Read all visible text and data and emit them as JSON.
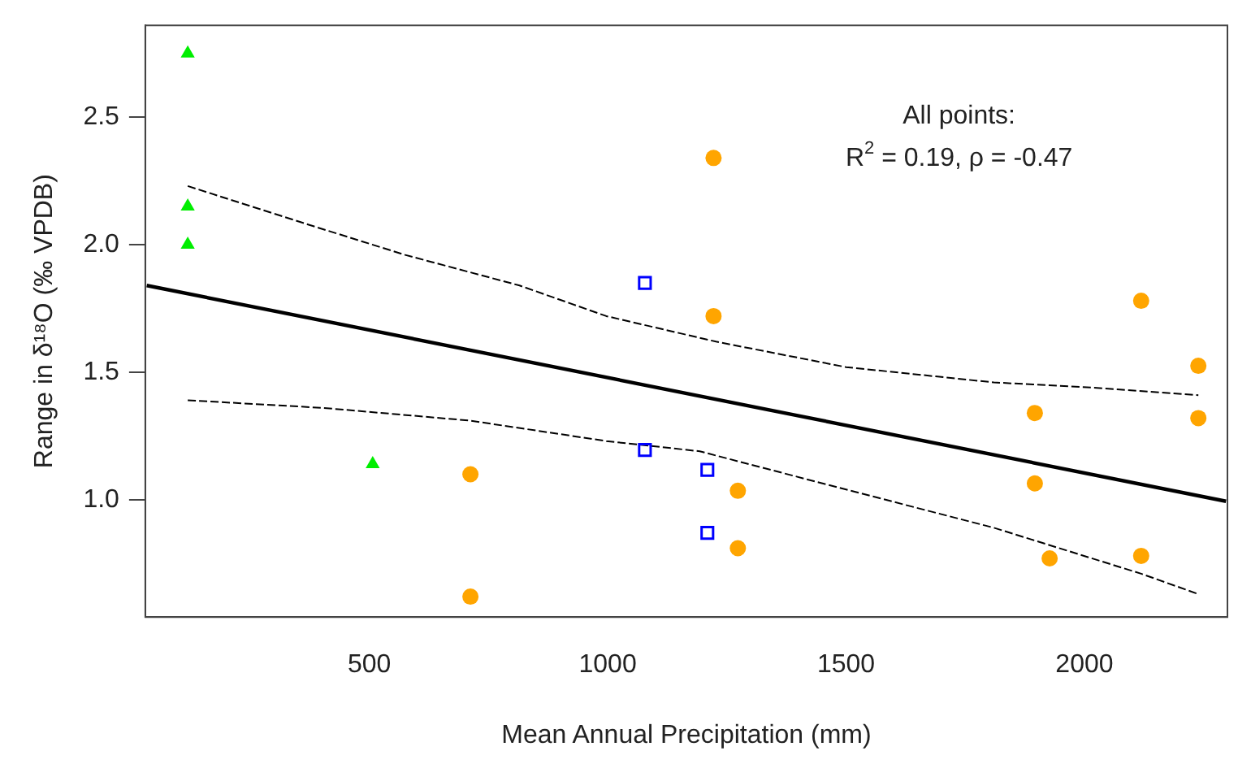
{
  "chart_data": {
    "type": "scatter",
    "xlabel": "Mean Annual Precipitation (mm)",
    "ylabel": "Range in δ¹⁸O (‰ VPDB)",
    "annotations": [
      "All points:",
      "R$^{2}$ = 0.19, ρ = -0.47"
    ],
    "xlim": [
      30,
      2300
    ],
    "xticks": [
      500,
      1000,
      1500,
      2000
    ],
    "ylim": [
      0.54,
      2.86
    ],
    "yticks": [
      {
        "value": 1,
        "label": "1.0"
      },
      {
        "value": 1.5,
        "label": "1.5"
      },
      {
        "value": 2,
        "label": "2.0"
      },
      {
        "value": 2.5,
        "label": "2.5"
      }
    ],
    "grid": false,
    "legend": false,
    "series": [
      {
        "color": "#00ee00",
        "marker": "triangle",
        "x": [
          119,
          119,
          119,
          507
        ],
        "values": [
          2.75,
          2.15,
          2.0,
          1.14
        ]
      },
      {
        "color": "#ffa500",
        "marker": "circle",
        "x": [
          712,
          712,
          1222,
          1222,
          1273,
          1273,
          1896,
          1896,
          1927,
          2119,
          2119,
          2239,
          2239
        ],
        "values": [
          0.62,
          1.1,
          2.34,
          1.72,
          1.035,
          0.81,
          1.34,
          1.064,
          0.77,
          0.78,
          1.78,
          1.525,
          1.32
        ]
      },
      {
        "color": "#0000ff",
        "marker": "square",
        "x": [
          1078,
          1078,
          1209,
          1209
        ],
        "values": [
          1.85,
          1.195,
          1.117,
          0.87
        ]
      },
      {
        "type": "line",
        "color": "#000000",
        "marker": "none",
        "line_style": "solid",
        "x": [
          33,
          2297
        ],
        "values": [
          1.84,
          0.994
        ]
      },
      {
        "type": "line",
        "color": "#000000",
        "marker": "none",
        "line_style": "dashed",
        "x": [
          119,
          370,
          575,
          815,
          997,
          1227,
          1500,
          1810,
          2016,
          2239
        ],
        "values": [
          2.23,
          2.08,
          1.96,
          1.84,
          1.72,
          1.62,
          1.52,
          1.46,
          1.44,
          1.41
        ]
      },
      {
        "type": "line",
        "color": "#000000",
        "marker": "none",
        "line_style": "dashed",
        "x": [
          119,
          404,
          712,
          997,
          1193,
          1500,
          1810,
          2119,
          2239
        ],
        "values": [
          1.39,
          1.36,
          1.31,
          1.23,
          1.19,
          1.04,
          0.89,
          0.71,
          0.63
        ]
      }
    ]
  }
}
